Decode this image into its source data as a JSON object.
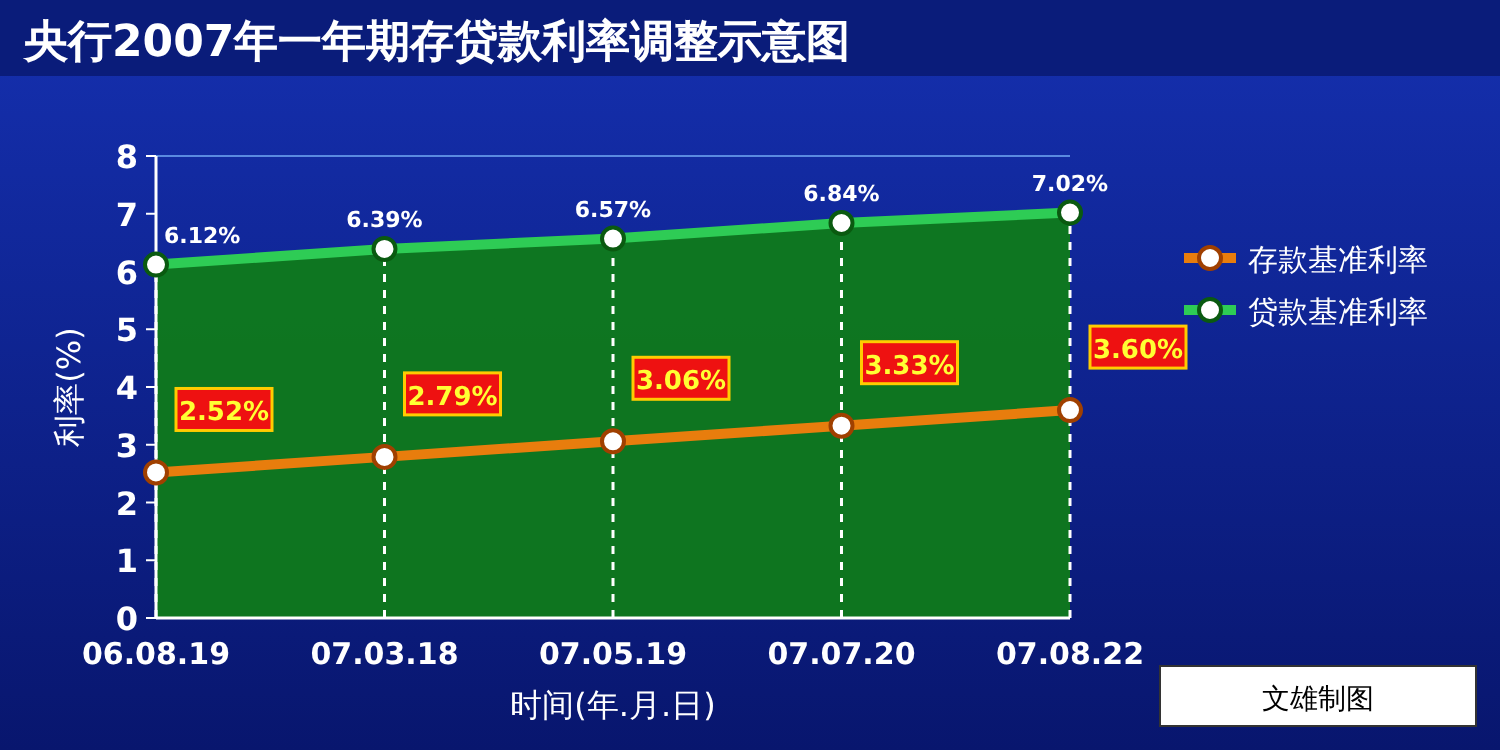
{
  "chart_data": {
    "type": "line",
    "title": "央行2007年一年期存贷款利率调整示意图",
    "xlabel": "时间(年.月.日)",
    "ylabel": "利率(%)",
    "categories": [
      "06.08.19",
      "07.03.18",
      "07.05.19",
      "07.07.20",
      "07.08.22"
    ],
    "series": [
      {
        "name": "存款基准利率",
        "color": "#e87d0d",
        "values": [
          2.52,
          2.79,
          3.06,
          3.33,
          3.6
        ],
        "value_labels": [
          "2.52%",
          "2.79%",
          "3.06%",
          "3.33%",
          "3.60%"
        ]
      },
      {
        "name": "贷款基准利率",
        "type": "area",
        "color": "#2ecc55",
        "values": [
          6.12,
          6.39,
          6.57,
          6.84,
          7.02
        ],
        "value_labels": [
          "6.12%",
          "6.39%",
          "6.57%",
          "6.84%",
          "7.02%"
        ]
      }
    ],
    "ylim": [
      0,
      8
    ],
    "yticks": [
      0,
      1,
      2,
      3,
      4,
      5,
      6,
      7,
      8
    ],
    "grid": "x",
    "legend": "right",
    "marker": "circle",
    "annotations": [
      "文雄制图"
    ]
  }
}
